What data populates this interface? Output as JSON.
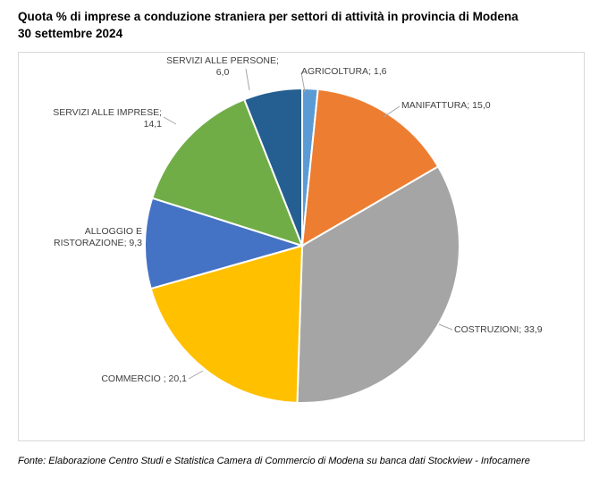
{
  "title": {
    "line1": "Quota % di imprese a conduzione straniera per settori di attività in provincia di Modena",
    "line2": "30 settembre 2024"
  },
  "chart_data": {
    "type": "pie",
    "title": "",
    "slices": [
      {
        "label": "AGRICOLTURA",
        "value": 1.6,
        "value_text": "1,6",
        "color": "#5b9bd5"
      },
      {
        "label": "MANIFATTURA",
        "value": 15.0,
        "value_text": "15,0",
        "color": "#ed7d31"
      },
      {
        "label": "COSTRUZIONI",
        "value": 33.9,
        "value_text": "33,9",
        "color": "#a5a5a5"
      },
      {
        "label": "COMMERCIO ",
        "value": 20.1,
        "value_text": "20,1",
        "color": "#ffc000"
      },
      {
        "label": "ALLOGGIO E RISTORAZIONE",
        "value": 9.3,
        "value_text": "9,3",
        "color": "#4472c4"
      },
      {
        "label": "SERVIZI ALLE IMPRESE",
        "value": 14.1,
        "value_text": "14,1",
        "color": "#70ad47"
      },
      {
        "label": "SERVIZI ALLE PERSONE",
        "value": 6.0,
        "value_text": "6,0",
        "color": "#255e91"
      }
    ],
    "labels_text": {
      "AGRICOLTURA": [
        "AGRICOLTURA; 1,6"
      ],
      "MANIFATTURA": [
        "MANIFATTURA; 15,0"
      ],
      "COSTRUZIONI": [
        "COSTRUZIONI; 33,9"
      ],
      "COMMERCIO ": [
        "COMMERCIO ; 20,1"
      ],
      "ALLOGGIO E RISTORAZIONE": [
        "ALLOGGIO E",
        "RISTORAZIONE; 9,3"
      ],
      "SERVIZI ALLE IMPRESE": [
        "SERVIZI ALLE IMPRESE;",
        "14,1"
      ],
      "SERVIZI ALLE PERSONE": [
        "SERVIZI ALLE PERSONE;",
        "6,0"
      ]
    }
  },
  "footnote": "Fonte: Elaborazione Centro Studi e Statistica Camera di Commercio di Modena su banca dati Stockview - Infocamere"
}
